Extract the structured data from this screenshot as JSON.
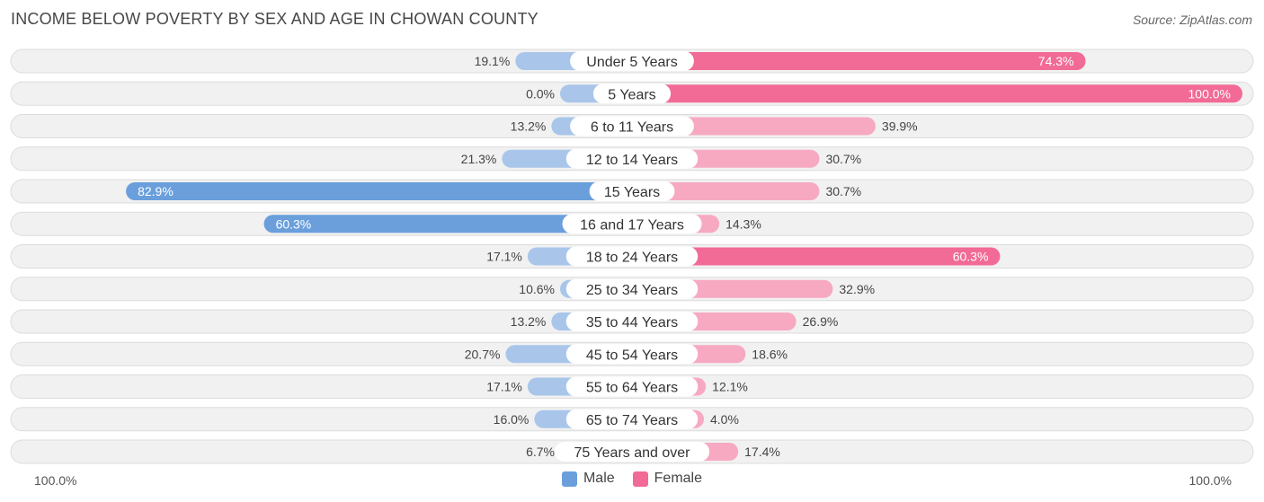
{
  "title": "INCOME BELOW POVERTY BY SEX AND AGE IN CHOWAN COUNTY",
  "source": "Source: ZipAtlas.com",
  "colors": {
    "male_strong": "#6a9fdc",
    "male_light": "#a9c6ea",
    "female_strong": "#f26a96",
    "female_light": "#f7a9c2",
    "row_bg": "#f1f1f1",
    "row_border": "#dcdcdc"
  },
  "axis": {
    "left_label": "100.0%",
    "right_label": "100.0%"
  },
  "legend": {
    "male": "Male",
    "female": "Female"
  },
  "chart_data": {
    "type": "bar",
    "orientation": "diverging-horizontal",
    "title": "INCOME BELOW POVERTY BY SEX AND AGE IN CHOWAN COUNTY",
    "xlim": [
      -100,
      100
    ],
    "categories": [
      "Under 5 Years",
      "5 Years",
      "6 to 11 Years",
      "12 to 14 Years",
      "15 Years",
      "16 and 17 Years",
      "18 to 24 Years",
      "25 to 34 Years",
      "35 to 44 Years",
      "45 to 54 Years",
      "55 to 64 Years",
      "65 to 74 Years",
      "75 Years and over"
    ],
    "series": [
      {
        "name": "Male",
        "values": [
          19.1,
          0.0,
          13.2,
          21.3,
          82.9,
          60.3,
          17.1,
          10.6,
          13.2,
          20.7,
          17.1,
          16.0,
          6.7
        ],
        "labels": [
          "19.1%",
          "0.0%",
          "13.2%",
          "21.3%",
          "82.9%",
          "60.3%",
          "17.1%",
          "10.6%",
          "13.2%",
          "20.7%",
          "17.1%",
          "16.0%",
          "6.7%"
        ]
      },
      {
        "name": "Female",
        "values": [
          74.3,
          100.0,
          39.9,
          30.7,
          30.7,
          14.3,
          60.3,
          32.9,
          26.9,
          18.6,
          12.1,
          4.0,
          17.4
        ],
        "labels": [
          "74.3%",
          "100.0%",
          "39.9%",
          "30.7%",
          "30.7%",
          "14.3%",
          "60.3%",
          "32.9%",
          "26.9%",
          "18.6%",
          "12.1%",
          "4.0%",
          "17.4%"
        ]
      }
    ]
  }
}
